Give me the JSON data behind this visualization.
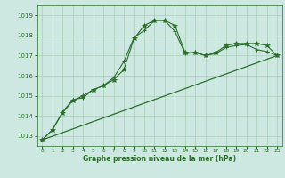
{
  "bg_color": "#cce8e0",
  "grid_color": "#aaccbb",
  "line_color": "#2d6e2d",
  "xlabel": "Graphe pression niveau de la mer (hPa)",
  "ylim": [
    1012.5,
    1019.5
  ],
  "xlim": [
    -0.5,
    23.5
  ],
  "yticks": [
    1013,
    1014,
    1015,
    1016,
    1017,
    1018,
    1019
  ],
  "xticks": [
    0,
    1,
    2,
    3,
    4,
    5,
    6,
    7,
    8,
    9,
    10,
    11,
    12,
    13,
    14,
    15,
    16,
    17,
    18,
    19,
    20,
    21,
    22,
    23
  ],
  "series1_x": [
    0,
    1,
    2,
    3,
    4,
    5,
    6,
    7,
    8,
    9,
    10,
    11,
    12,
    13,
    14,
    15,
    16,
    17,
    18,
    19,
    20,
    21,
    22,
    23
  ],
  "series1_y": [
    1012.8,
    1013.3,
    1014.2,
    1014.8,
    1014.9,
    1015.3,
    1015.5,
    1015.9,
    1016.7,
    1017.9,
    1018.25,
    1018.75,
    1018.75,
    1018.2,
    1017.1,
    1017.15,
    1017.0,
    1017.1,
    1017.4,
    1017.5,
    1017.55,
    1017.3,
    1017.2,
    1017.0
  ],
  "series2_x": [
    0,
    1,
    2,
    3,
    4,
    5,
    6,
    7,
    8,
    9,
    10,
    11,
    12,
    13,
    14,
    15,
    16,
    17,
    18,
    19,
    20,
    21,
    22,
    23
  ],
  "series2_y": [
    1012.8,
    1013.3,
    1014.15,
    1014.75,
    1015.0,
    1015.3,
    1015.5,
    1015.8,
    1016.3,
    1017.85,
    1018.5,
    1018.75,
    1018.75,
    1018.5,
    1017.15,
    1017.15,
    1017.0,
    1017.15,
    1017.5,
    1017.6,
    1017.6,
    1017.6,
    1017.5,
    1017.0
  ],
  "series3_x": [
    0,
    23
  ],
  "series3_y": [
    1012.8,
    1017.0
  ]
}
